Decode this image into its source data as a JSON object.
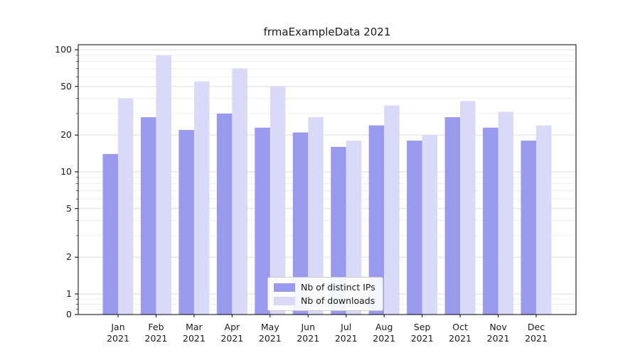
{
  "title": "frmaExampleData 2021",
  "chart_data": {
    "type": "bar",
    "title": "frmaExampleData 2021",
    "xlabel": "",
    "ylabel": "",
    "yscale": "symlog",
    "yticks": [
      0,
      1,
      2,
      5,
      10,
      20,
      50,
      100
    ],
    "ylim": [
      0,
      110
    ],
    "grid": true,
    "legend_position": "lower center",
    "categories": [
      "Jan",
      "Feb",
      "Mar",
      "Apr",
      "May",
      "Jun",
      "Jul",
      "Aug",
      "Sep",
      "Oct",
      "Nov",
      "Dec"
    ],
    "category_year": "2021",
    "series": [
      {
        "name": "Nb of distinct IPs",
        "color": "#9999ee",
        "values": [
          14,
          28,
          22,
          30,
          23,
          21,
          16,
          24,
          18,
          28,
          23,
          18
        ]
      },
      {
        "name": "Nb of downloads",
        "color": "#d9d9f8",
        "values": [
          40,
          90,
          55,
          70,
          50,
          28,
          18,
          35,
          20,
          38,
          31,
          24
        ]
      }
    ]
  },
  "colors": {
    "grid_major": "#dedede",
    "grid_minor": "#efefef",
    "spine": "#000000",
    "text": "#1a1a1a",
    "legend_border": "#cccccc"
  }
}
